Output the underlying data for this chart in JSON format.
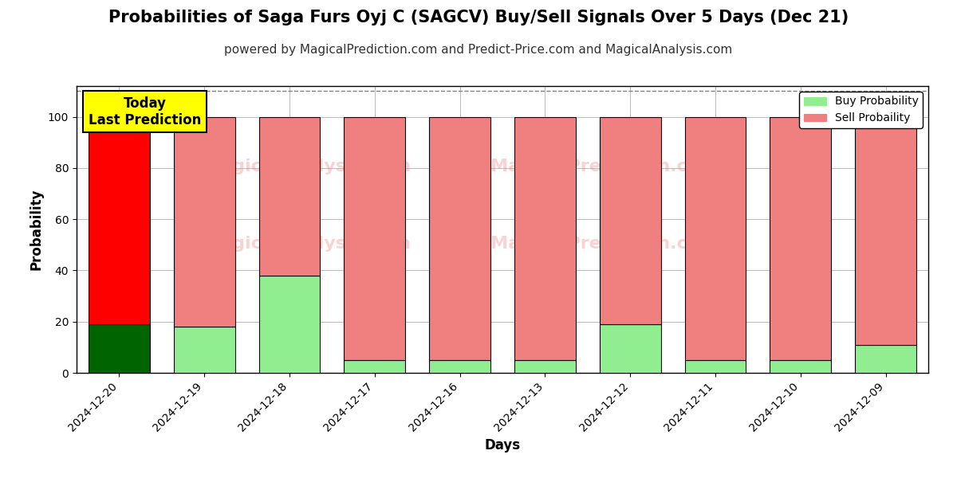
{
  "title": "Probabilities of Saga Furs Oyj C (SAGCV) Buy/Sell Signals Over 5 Days (Dec 21)",
  "subtitle": "powered by MagicalPrediction.com and Predict-Price.com and MagicalAnalysis.com",
  "xlabel": "Days",
  "ylabel": "Probability",
  "dates": [
    "2024-12-20",
    "2024-12-19",
    "2024-12-18",
    "2024-12-17",
    "2024-12-16",
    "2024-12-13",
    "2024-12-12",
    "2024-12-11",
    "2024-12-10",
    "2024-12-09"
  ],
  "buy_values": [
    19,
    18,
    38,
    5,
    5,
    5,
    19,
    5,
    5,
    11
  ],
  "sell_values": [
    81,
    82,
    62,
    95,
    95,
    95,
    81,
    95,
    95,
    89
  ],
  "today_buy_color": "#006400",
  "today_sell_color": "#ff0000",
  "buy_color": "#90ee90",
  "sell_color": "#f08080",
  "today_annotation_bg": "#ffff00",
  "today_annotation_text": "Today\nLast Prediction",
  "today_annotation_fontsize": 12,
  "bar_edgecolor": "#000000",
  "bar_linewidth": 0.8,
  "ylim": [
    0,
    112
  ],
  "yticks": [
    0,
    20,
    40,
    60,
    80,
    100
  ],
  "dashed_line_y": 110,
  "grid_color": "#bbbbbb",
  "background_color": "#ffffff",
  "watermark_color": "#f08080",
  "watermark_alpha": 0.35,
  "legend_buy_label": "Buy Probability",
  "legend_sell_label": "Sell Probaility",
  "title_fontsize": 15,
  "subtitle_fontsize": 11,
  "axis_label_fontsize": 12,
  "tick_fontsize": 10
}
